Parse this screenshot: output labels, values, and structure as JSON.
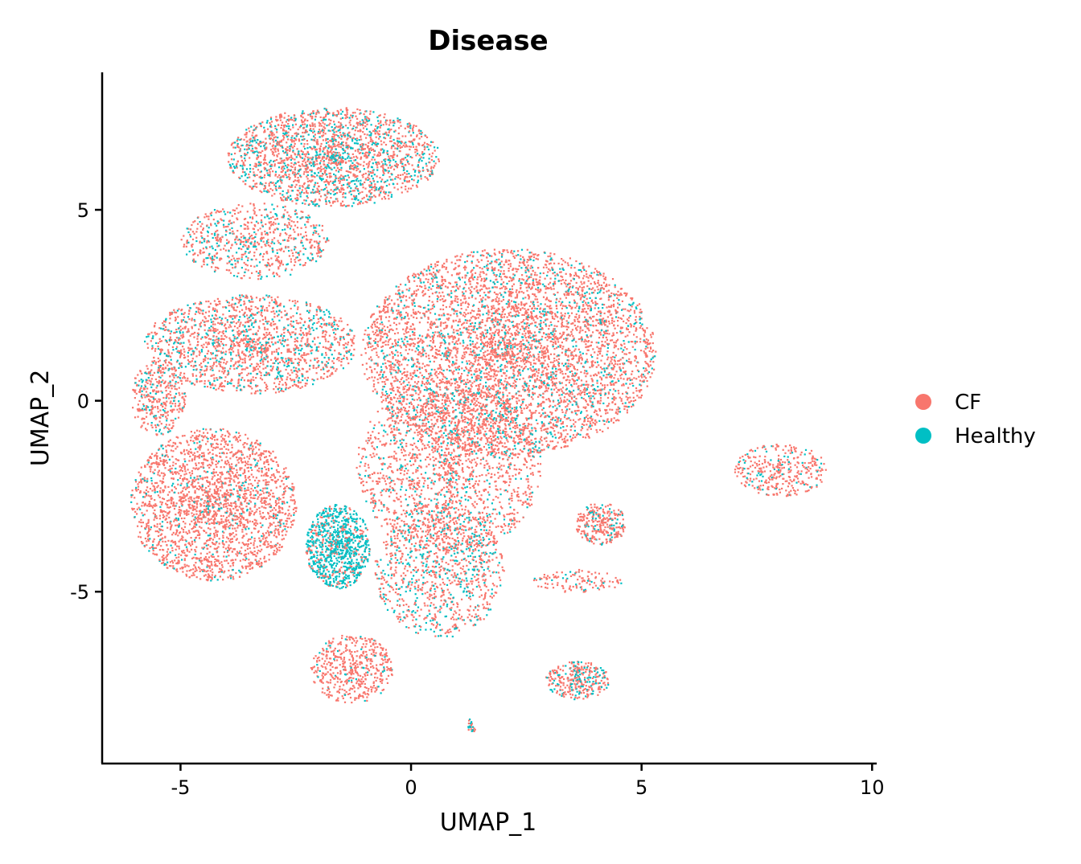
{
  "chart_data": {
    "type": "scatter",
    "title": "Disease",
    "xlabel": "UMAP_1",
    "ylabel": "UMAP_2",
    "xlim": [
      -6.7,
      10.1
    ],
    "ylim": [
      -9.5,
      8.6
    ],
    "xticks": [
      -5,
      0,
      5,
      10
    ],
    "yticks": [
      5,
      0,
      -5
    ],
    "xtick_labels": [
      "-5",
      "0",
      "5",
      "10"
    ],
    "ytick_labels": [
      "5",
      "0",
      "-5"
    ],
    "grid": false,
    "legend": {
      "placement": "right",
      "entries": [
        {
          "name": "CF",
          "color": "#F8766D"
        },
        {
          "name": "Healthy",
          "color": "#00BFC4"
        }
      ]
    },
    "series": [
      {
        "name": "CF",
        "color": "#F8766D"
      },
      {
        "name": "Healthy",
        "color": "#00BFC4"
      }
    ],
    "clusters": [
      {
        "cx": 2.1,
        "cy": 1.3,
        "rx": 3.2,
        "ry": 2.7,
        "n": 5200,
        "healthy_fraction": 0.17
      },
      {
        "cx": 0.8,
        "cy": -1.7,
        "rx": 2.0,
        "ry": 2.3,
        "n": 1800,
        "healthy_fraction": 0.17
      },
      {
        "cx": -1.7,
        "cy": 6.4,
        "rx": 2.3,
        "ry": 1.3,
        "n": 2100,
        "healthy_fraction": 0.3
      },
      {
        "cx": -3.4,
        "cy": 4.2,
        "rx": 1.6,
        "ry": 1.0,
        "n": 700,
        "healthy_fraction": 0.28
      },
      {
        "cx": -3.5,
        "cy": 1.5,
        "rx": 2.3,
        "ry": 1.3,
        "n": 1700,
        "healthy_fraction": 0.24
      },
      {
        "cx": -5.5,
        "cy": 0.1,
        "rx": 0.6,
        "ry": 1.0,
        "n": 350,
        "healthy_fraction": 0.18
      },
      {
        "cx": -4.3,
        "cy": -2.7,
        "rx": 1.8,
        "ry": 2.0,
        "n": 2300,
        "healthy_fraction": 0.1
      },
      {
        "cx": -1.6,
        "cy": -3.8,
        "rx": 0.7,
        "ry": 1.1,
        "n": 900,
        "healthy_fraction": 0.8
      },
      {
        "cx": 0.6,
        "cy": -4.4,
        "rx": 1.4,
        "ry": 1.8,
        "n": 1000,
        "healthy_fraction": 0.28
      },
      {
        "cx": -1.3,
        "cy": -7.0,
        "rx": 0.9,
        "ry": 0.9,
        "n": 500,
        "healthy_fraction": 0.08
      },
      {
        "cx": 4.1,
        "cy": -3.2,
        "rx": 0.55,
        "ry": 0.55,
        "n": 280,
        "healthy_fraction": 0.18
      },
      {
        "cx": 3.6,
        "cy": -4.7,
        "rx": 1.0,
        "ry": 0.3,
        "n": 120,
        "healthy_fraction": 0.15
      },
      {
        "cx": 8.0,
        "cy": -1.8,
        "rx": 1.0,
        "ry": 0.7,
        "n": 350,
        "healthy_fraction": 0.15
      },
      {
        "cx": 3.6,
        "cy": -7.3,
        "rx": 0.7,
        "ry": 0.5,
        "n": 320,
        "healthy_fraction": 0.35
      },
      {
        "cx": 1.3,
        "cy": -8.5,
        "rx": 0.1,
        "ry": 0.2,
        "n": 25,
        "healthy_fraction": 0.5
      }
    ]
  }
}
